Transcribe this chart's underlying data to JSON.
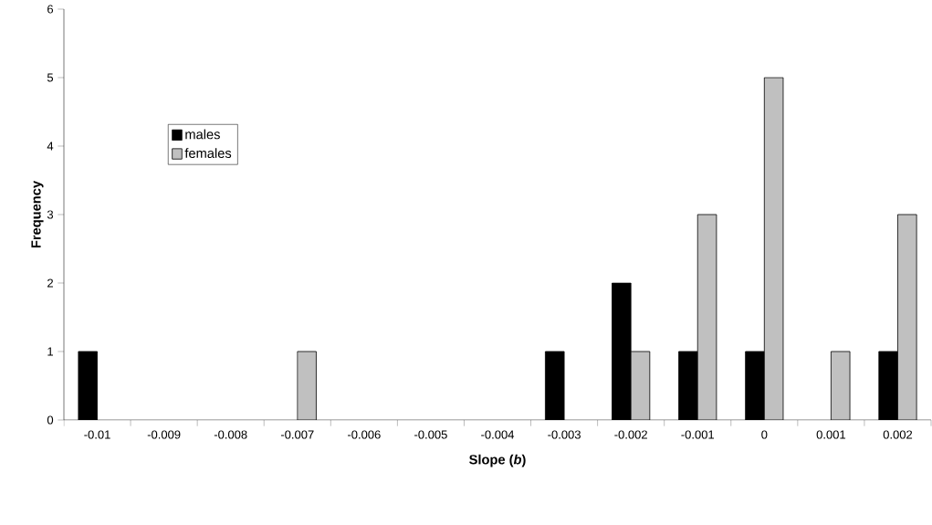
{
  "chart_data": {
    "type": "bar",
    "xlabel": "Slope (*b*)",
    "ylabel": "Frequency",
    "categories": [
      "-0.01",
      "-0.009",
      "-0.008",
      "-0.007",
      "-0.006",
      "-0.005",
      "-0.004",
      "-0.003",
      "-0.002",
      "-0.001",
      "0",
      "0.001",
      "0.002"
    ],
    "series": [
      {
        "name": "males",
        "color": "#000000",
        "values": [
          1,
          0,
          0,
          0,
          0,
          0,
          0,
          1,
          2,
          1,
          1,
          0,
          1
        ]
      },
      {
        "name": "females",
        "color": "#c0c0c0",
        "values": [
          0,
          0,
          0,
          1,
          0,
          0,
          0,
          0,
          1,
          3,
          5,
          1,
          3
        ]
      }
    ],
    "ylim": [
      0,
      6
    ],
    "yticks": [
      0,
      1,
      2,
      3,
      4,
      5,
      6
    ],
    "grid": false,
    "legend": "left"
  }
}
